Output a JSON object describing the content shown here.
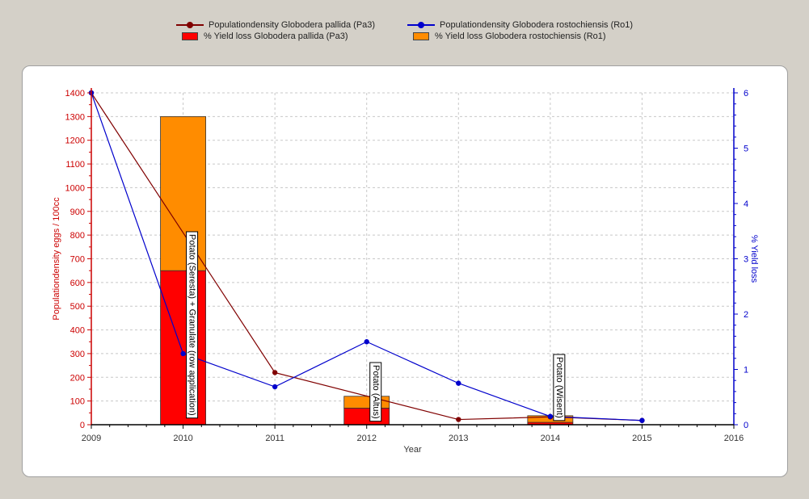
{
  "legend": [
    {
      "label": "Populationdensity Globodera pallida (Pa3)",
      "kind": "line",
      "color": "#800000"
    },
    {
      "label": "Populationdensity Globodera rostochiensis (Ro1)",
      "kind": "line",
      "color": "#0000cc"
    },
    {
      "label": "% Yield loss Globodera pallida (Pa3)",
      "kind": "box",
      "color": "#ff0000"
    },
    {
      "label": "% Yield loss Globodera rostochiensis (Ro1)",
      "kind": "box",
      "color": "#ff8c00"
    }
  ],
  "chart_data": {
    "type": "line",
    "xlabel": "Year",
    "ylabel": "Populationdensity eggs / 100cc",
    "y2label": "% Yield loss",
    "xlim": [
      2009,
      2016
    ],
    "ylim": [
      0,
      1400
    ],
    "y2lim": [
      0,
      6
    ],
    "x_ticks": [
      "2009",
      "2010",
      "2011",
      "2012",
      "2013",
      "2014",
      "2015",
      "2016"
    ],
    "y_ticks": [
      "0",
      "100",
      "200",
      "300",
      "400",
      "500",
      "600",
      "700",
      "800",
      "900",
      "1000",
      "1100",
      "1200",
      "1300",
      "1400"
    ],
    "y2_ticks": [
      "0",
      "1",
      "2",
      "3",
      "4",
      "5",
      "6"
    ],
    "grid": true,
    "legend_position": "top",
    "series": [
      {
        "name": "Populationdensity Globodera pallida (Pa3)",
        "axis": "left",
        "color": "#800000",
        "x": [
          2009,
          2011,
          2013,
          2014,
          2015
        ],
        "y": [
          1400,
          220,
          22,
          33,
          18
        ]
      },
      {
        "name": "Populationdensity Globodera rostochiensis (Ro1)",
        "axis": "left",
        "color": "#0000cc",
        "x": [
          2009,
          2010,
          2011,
          2012,
          2013,
          2014,
          2015
        ],
        "y": [
          1400,
          300,
          160,
          350,
          175,
          35,
          18
        ]
      }
    ],
    "bars": {
      "axis": "left",
      "x": [
        2010,
        2012,
        2014
      ],
      "series": [
        {
          "name": "% Yield loss Globodera pallida (Pa3)",
          "color": "#ff0000",
          "values": [
            650,
            70,
            10
          ]
        },
        {
          "name": "% Yield loss Globodera rostochiensis (Ro1)",
          "color": "#ff8c00",
          "values": [
            650,
            50,
            28
          ]
        }
      ]
    },
    "annotations": [
      {
        "x": 2010,
        "text": "Potato (Seresta) + Granulate (row application)"
      },
      {
        "x": 2012,
        "text": "Potato (Altus)"
      },
      {
        "x": 2014,
        "text": "Potato (Wisent)"
      }
    ]
  }
}
